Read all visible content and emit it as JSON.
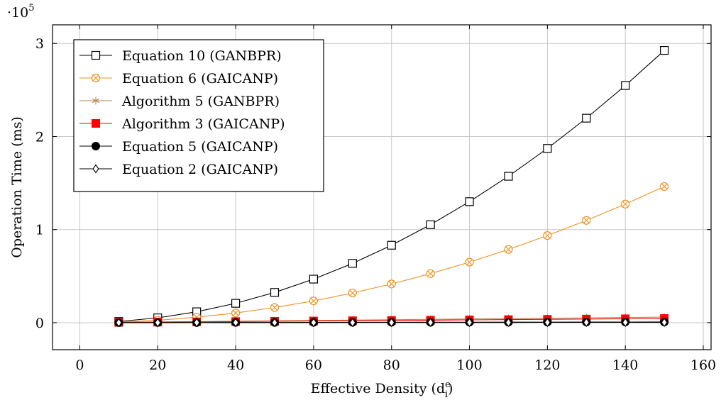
{
  "chart_data": {
    "type": "line",
    "title": "",
    "xlabel": "Effective Density (d",
    "xlabel_sup": "e",
    "xlabel_sub": "i",
    "xlabel_close": ")",
    "ylabel": "Operation Time (ms)",
    "y_exponent_base": "·10",
    "y_exponent_power": "5",
    "xlim": [
      -7,
      162
    ],
    "ylim": [
      -0.29,
      3.2
    ],
    "x_ticks": [
      0,
      20,
      40,
      60,
      80,
      100,
      120,
      140,
      160
    ],
    "y_ticks": [
      0,
      1,
      2,
      3
    ],
    "grid": true,
    "legend_position": "top-left",
    "x": [
      10,
      20,
      30,
      40,
      50,
      60,
      70,
      80,
      90,
      100,
      110,
      120,
      130,
      140,
      150
    ],
    "series": [
      {
        "name": "Equation 10 (GANBPR)",
        "color": "#000000",
        "marker": "square-open",
        "values": [
          0.013,
          0.052,
          0.117,
          0.208,
          0.325,
          0.468,
          0.637,
          0.832,
          1.053,
          1.3,
          1.573,
          1.872,
          2.197,
          2.548,
          2.925
        ]
      },
      {
        "name": "Equation 6 (GAICANP)",
        "color": "#f28e1c",
        "marker": "circle-x",
        "values": [
          0.0065,
          0.026,
          0.059,
          0.104,
          0.163,
          0.234,
          0.319,
          0.416,
          0.527,
          0.65,
          0.787,
          0.936,
          1.099,
          1.274,
          1.463
        ]
      },
      {
        "name": "Algorithm 5 (GANBPR)",
        "color": "#b5874f",
        "marker": "asterisk",
        "values": [
          0.004,
          0.008,
          0.012,
          0.016,
          0.02,
          0.024,
          0.028,
          0.032,
          0.036,
          0.04,
          0.044,
          0.048,
          0.052,
          0.056,
          0.06
        ]
      },
      {
        "name": "Algorithm 3 (GAICANP)",
        "color": "#ff0000",
        "marker": "square-filled",
        "values": [
          0.003,
          0.006,
          0.009,
          0.012,
          0.015,
          0.018,
          0.021,
          0.024,
          0.027,
          0.03,
          0.033,
          0.036,
          0.039,
          0.042,
          0.045
        ]
      },
      {
        "name": "Equation 5 (GAICANP)",
        "color": "#000000",
        "marker": "circle-filled",
        "values": [
          0.0005,
          0.001,
          0.0015,
          0.002,
          0.0025,
          0.003,
          0.0035,
          0.004,
          0.0045,
          0.005,
          0.0055,
          0.006,
          0.0065,
          0.007,
          0.0075
        ]
      },
      {
        "name": "Equation 2 (GAICANP)",
        "color": "#000000",
        "marker": "diamond-open",
        "values": [
          0.0002,
          0.0004,
          0.0006,
          0.0008,
          0.001,
          0.0012,
          0.0014,
          0.0016,
          0.0018,
          0.002,
          0.0022,
          0.0024,
          0.0026,
          0.0028,
          0.003
        ]
      }
    ]
  }
}
